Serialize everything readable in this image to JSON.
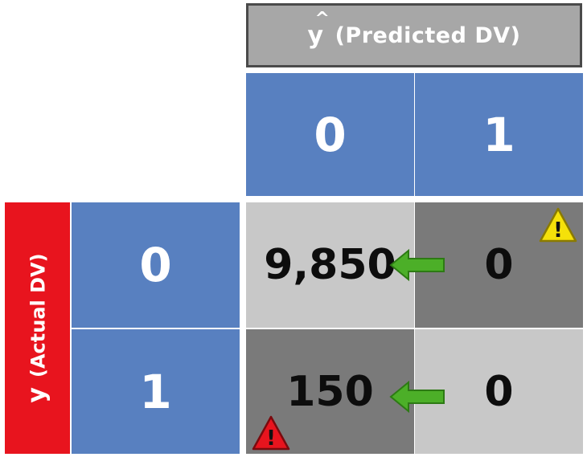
{
  "predicted_header": {
    "symbol": "y",
    "hat": "^",
    "label": "(Predicted DV)"
  },
  "actual_header": {
    "symbol": "y",
    "label": "(Actual DV)"
  },
  "predicted_classes": [
    "0",
    "1"
  ],
  "actual_classes": [
    "0",
    "1"
  ],
  "matrix": {
    "r0c0": "9,850",
    "r0c1": "0",
    "r1c0": "150",
    "r1c1": "0"
  },
  "icons": {
    "warning_yellow": "warning-triangle-yellow",
    "warning_red": "warning-triangle-red",
    "arrow": "green-left-arrow",
    "warning_mark": "!"
  },
  "colors": {
    "header_blue": "#5880c0",
    "actual_red": "#e8141e",
    "predicted_gray": "#a7a7a7",
    "cell_light": "#c8c8c8",
    "cell_dark": "#7a7a7a",
    "arrow_green": "#4caf28",
    "warn_yellow": "#f5e10a",
    "warn_red": "#e8141e"
  }
}
